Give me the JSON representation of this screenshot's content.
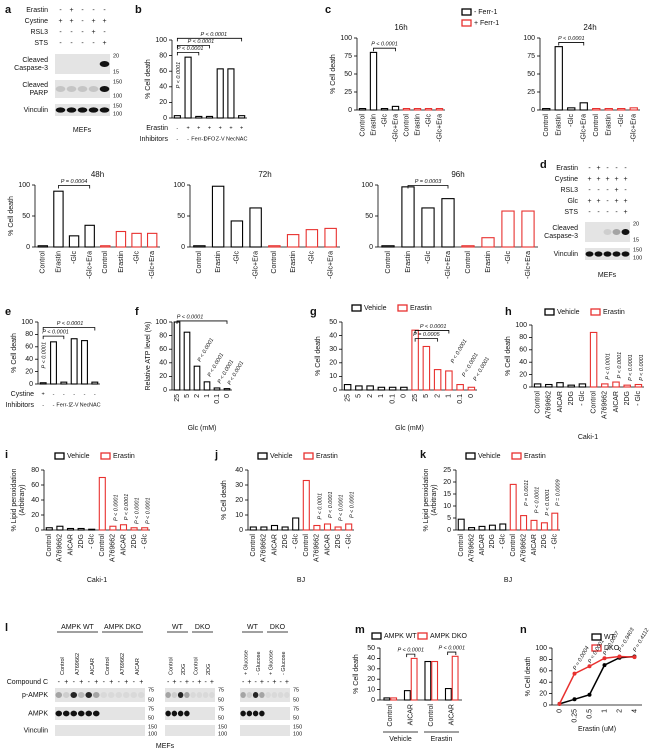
{
  "chart_data": [
    {
      "letter": "b",
      "type": "bar",
      "ylabel": "% Cell death",
      "ylim": [
        0,
        100
      ],
      "yticks": [
        0,
        20,
        40,
        60,
        80,
        100
      ],
      "series": [
        {
          "color": "#000000",
          "values": [
            3,
            78,
            2,
            2,
            63,
            63,
            3
          ]
        }
      ],
      "rows": [
        {
          "label": "Erastin",
          "cells": [
            "-",
            "+",
            "+",
            "+",
            "+",
            "+",
            "+"
          ]
        },
        {
          "label": "Inhibitors",
          "cells": [
            "-",
            "-",
            "Ferr-1",
            "DFO",
            "Z-V",
            "Nec",
            "NAC"
          ]
        }
      ],
      "annotations": [
        "P < 0.0001",
        "P < 0.0001",
        "P < 0.0001",
        "P < 0.0001"
      ]
    },
    {
      "letter": "c",
      "type": "bar",
      "title": "16h",
      "ylabel": "% Cell death",
      "ylim": [
        0,
        100
      ],
      "yticks": [
        0,
        25,
        50,
        75,
        100
      ],
      "categories": [
        "Control",
        "Erastin",
        "-Glc",
        "-Glc+Era",
        "Control",
        "Erastin",
        "-Glc",
        "-Glc+Era"
      ],
      "series": [
        {
          "name": "- Ferr-1",
          "color": "#000000",
          "values": [
            2,
            80,
            2,
            5,
            null,
            null,
            null,
            null
          ]
        },
        {
          "name": "+ Ferr-1",
          "color": "#e8312f",
          "values": [
            null,
            null,
            null,
            null,
            2,
            2,
            2,
            2
          ]
        }
      ],
      "annotations": [
        "P < 0.0001"
      ]
    },
    {
      "type": "bar",
      "title": "24h",
      "ylim": [
        0,
        100
      ],
      "yticks": [
        0,
        25,
        50,
        75,
        100
      ],
      "categories": [
        "Control",
        "Erastin",
        "-Glc",
        "-Glc+Era",
        "Control",
        "Erastin",
        "-Glc",
        "-Glc+Era"
      ],
      "series": [
        {
          "color": "#000000",
          "values": [
            2,
            88,
            3,
            10,
            null,
            null,
            null,
            null
          ]
        },
        {
          "color": "#e8312f",
          "values": [
            null,
            null,
            null,
            null,
            2,
            2,
            2,
            3
          ]
        }
      ],
      "annotations": [
        "P < 0.0001"
      ]
    },
    {
      "type": "bar",
      "title": "48h",
      "ylabel": "% Cell death",
      "ylim": [
        0,
        100
      ],
      "yticks": [
        0,
        50,
        100
      ],
      "categories": [
        "Control",
        "Erastin",
        "-Glc",
        "-Glc+Era",
        "Control",
        "Erastin",
        "-Glc",
        "-Glc+Era"
      ],
      "series": [
        {
          "color": "#000000",
          "values": [
            2,
            90,
            18,
            35,
            null,
            null,
            null,
            null
          ]
        },
        {
          "color": "#e8312f",
          "values": [
            null,
            null,
            null,
            null,
            2,
            25,
            22,
            22
          ]
        }
      ],
      "annotations": [
        "P = 0.0004"
      ]
    },
    {
      "type": "bar",
      "title": "72h",
      "ylim": [
        0,
        100
      ],
      "yticks": [
        0,
        50,
        100
      ],
      "categories": [
        "Control",
        "Erastin",
        "-Glc",
        "-Glc+Era",
        "Control",
        "Erastin",
        "-Glc",
        "-Glc+Era"
      ],
      "series": [
        {
          "color": "#000000",
          "values": [
            2,
            98,
            42,
            63,
            null,
            null,
            null,
            null
          ]
        },
        {
          "color": "#e8312f",
          "values": [
            null,
            null,
            null,
            null,
            2,
            20,
            28,
            30
          ]
        }
      ]
    },
    {
      "type": "bar",
      "title": "96h",
      "ylim": [
        0,
        100
      ],
      "yticks": [
        0,
        50,
        100
      ],
      "categories": [
        "Control",
        "Erastin",
        "-Glc",
        "-Glc+Era",
        "Control",
        "Erastin",
        "-Glc",
        "-Glc+Era"
      ],
      "series": [
        {
          "color": "#000000",
          "values": [
            2,
            97,
            63,
            78,
            null,
            null,
            null,
            null
          ]
        },
        {
          "color": "#e8312f",
          "values": [
            null,
            null,
            null,
            null,
            2,
            15,
            58,
            58
          ]
        }
      ],
      "annotations": [
        "P = 0.0003"
      ]
    },
    {
      "letter": "e",
      "type": "bar",
      "ylabel": "% Cell death",
      "ylim": [
        0,
        100
      ],
      "yticks": [
        0,
        20,
        40,
        60,
        80,
        100
      ],
      "series": [
        {
          "color": "#000000",
          "values": [
            2,
            68,
            3,
            73,
            70,
            3
          ]
        }
      ],
      "rows": [
        {
          "label": "Cystine",
          "cells": [
            "+",
            "-",
            "-",
            "-",
            "-",
            "-"
          ]
        },
        {
          "label": "Inhibitors",
          "cells": [
            "-",
            "-",
            "Ferr-1",
            "Z-V",
            "Nec",
            "NAC"
          ]
        }
      ],
      "annotations": [
        "P < 0.0001",
        "P < 0.0001",
        "P < 0.0001"
      ]
    },
    {
      "letter": "f",
      "type": "bar",
      "ylabel": "Relative ATP level (%)",
      "xlabel": "Glc (mM)",
      "ylim": [
        0,
        100
      ],
      "yticks": [
        0,
        20,
        40,
        60,
        80,
        100
      ],
      "categories": [
        "25",
        "5",
        "2",
        "1",
        "0.1",
        "0"
      ],
      "series": [
        {
          "color": "#000000",
          "values": [
            100,
            85,
            35,
            12,
            3,
            2
          ]
        }
      ],
      "annotations": [
        "P < 0.0001",
        "P < 0.0001",
        "P < 0.0001",
        "P < 0.0001",
        "P < 0.0001"
      ]
    },
    {
      "letter": "g",
      "type": "bar",
      "ylabel": "% Cell death",
      "xlabel": "Glc (mM)",
      "ylim": [
        0,
        50
      ],
      "yticks": [
        0,
        10,
        20,
        30,
        40,
        50
      ],
      "categories": [
        "25",
        "5",
        "2",
        "1",
        "0.1",
        "0",
        "25",
        "5",
        "2",
        "1",
        "0.1",
        "0"
      ],
      "series": [
        {
          "name": "Vehicle",
          "color": "#000000",
          "values": [
            4,
            3,
            3,
            2,
            2,
            2,
            null,
            null,
            null,
            null,
            null,
            null
          ]
        },
        {
          "name": "Erastin",
          "color": "#e8312f",
          "values": [
            null,
            null,
            null,
            null,
            null,
            null,
            44,
            32,
            15,
            14,
            4,
            2
          ]
        }
      ],
      "annotations": [
        "P = 0.0005",
        "P < 0.0001",
        "P < 0.0001",
        "P < 0.0001",
        "P < 0.0001"
      ]
    },
    {
      "letter": "h",
      "type": "bar",
      "ylabel": "% Cell death",
      "xlabel": "Caki-1",
      "ylim": [
        0,
        100
      ],
      "yticks": [
        0,
        20,
        40,
        60,
        80,
        100
      ],
      "categories": [
        "Control",
        "A769662",
        "AICAR",
        "2DG",
        "- Glc",
        "Control",
        "A769662",
        "AICAR",
        "2DG",
        "- Glc"
      ],
      "series": [
        {
          "name": "Vehicle",
          "color": "#000000",
          "values": [
            5,
            4,
            7,
            3,
            5,
            null,
            null,
            null,
            null,
            null
          ]
        },
        {
          "name": "Erastin",
          "color": "#e8312f",
          "values": [
            null,
            null,
            null,
            null,
            null,
            88,
            5,
            8,
            3,
            4
          ]
        }
      ],
      "annotations": [
        "P < 0.0001",
        "P < 0.0001",
        "P < 0.0001",
        "P < 0.0001"
      ]
    },
    {
      "letter": "i",
      "type": "bar",
      "ylabel": [
        "% Lipid peroxidation",
        "(Arbitrary)"
      ],
      "xlabel": "Caki-1",
      "ylim": [
        0,
        80
      ],
      "yticks": [
        0,
        20,
        40,
        60,
        80
      ],
      "categories": [
        "Control",
        "A769662",
        "AICAR",
        "2DG",
        "- Glc",
        "Control",
        "A769662",
        "AICAR",
        "2DG",
        "- Glc"
      ],
      "series": [
        {
          "name": "Vehicle",
          "color": "#000000",
          "values": [
            3,
            5,
            2,
            2,
            1,
            null,
            null,
            null,
            null,
            null
          ]
        },
        {
          "name": "Erastin",
          "color": "#e8312f",
          "values": [
            null,
            null,
            null,
            null,
            null,
            70,
            5,
            7,
            3,
            3
          ]
        }
      ],
      "annotations": [
        "P < 0.0001",
        "P < 0.0001",
        "P < 0.0001",
        "P < 0.0001"
      ]
    },
    {
      "letter": "j",
      "type": "bar",
      "ylabel": "% Cell death",
      "xlabel": "BJ",
      "ylim": [
        0,
        40
      ],
      "yticks": [
        0,
        10,
        20,
        30,
        40
      ],
      "categories": [
        "Control",
        "A769662",
        "AICAR",
        "2DG",
        "- Glc",
        "Control",
        "A769662",
        "AICAR",
        "2DG",
        "- Glc"
      ],
      "series": [
        {
          "name": "Vehicle",
          "color": "#000000",
          "values": [
            2,
            2,
            3,
            2,
            8,
            null,
            null,
            null,
            null,
            null
          ]
        },
        {
          "name": "Erastin",
          "color": "#e8312f",
          "values": [
            null,
            null,
            null,
            null,
            null,
            33,
            3,
            4,
            2,
            4
          ]
        }
      ],
      "annotations": [
        "P < 0.0001",
        "P < 0.0001",
        "P < 0.0001",
        "P < 0.0001"
      ]
    },
    {
      "letter": "k",
      "type": "bar",
      "ylabel": [
        "% Lipid peroxidation",
        "(Arbitrary)"
      ],
      "xlabel": "BJ",
      "ylim": [
        0,
        25
      ],
      "yticks": [
        0,
        5,
        10,
        15,
        20,
        25
      ],
      "categories": [
        "Control",
        "A769662",
        "AICAR",
        "2DG",
        "- Glc",
        "Control",
        "A769662",
        "AICAR",
        "2DG",
        "- Glc"
      ],
      "series": [
        {
          "name": "Vehicle",
          "color": "#000000",
          "values": [
            4.5,
            1,
            1.5,
            2,
            2.5,
            null,
            null,
            null,
            null,
            null
          ]
        },
        {
          "name": "Erastin",
          "color": "#e8312f",
          "values": [
            null,
            null,
            null,
            null,
            null,
            19,
            6,
            4,
            3,
            7
          ]
        }
      ],
      "annotations": [
        "P = 0.0011",
        "P < 0.0001",
        "P < 0.0001",
        "P = 0.0009"
      ]
    },
    {
      "letter": "m",
      "type": "bar",
      "ylabel": "% Cell death",
      "ylim": [
        0,
        50
      ],
      "yticks": [
        0,
        10,
        20,
        30,
        40,
        50
      ],
      "categories": [
        "Control",
        "AICAR",
        "Control",
        "AICAR"
      ],
      "group_labels": [
        "Vehicle",
        "Erastin"
      ],
      "series": [
        {
          "name": "AMPK WT",
          "color": "#000000",
          "values": [
            2,
            9,
            37,
            11
          ]
        },
        {
          "name": "AMPK DKO",
          "color": "#e8312f",
          "values": [
            2,
            40,
            37,
            42
          ]
        }
      ],
      "annotations": [
        "P < 0.0001",
        "P < 0.0001"
      ]
    },
    {
      "letter": "n",
      "type": "line",
      "ylabel": "% Cell death",
      "xlabel": "Erastin (uM)",
      "ylim": [
        0,
        100
      ],
      "yticks": [
        0,
        20,
        40,
        60,
        80,
        100
      ],
      "categories": [
        "0",
        "0.25",
        "0.5",
        "1",
        "2",
        "4"
      ],
      "series": [
        {
          "name": "WT",
          "color": "#000000",
          "values": [
            2,
            10,
            18,
            70,
            83,
            85
          ]
        },
        {
          "name": "DKO",
          "color": "#e8312f",
          "values": [
            2,
            55,
            68,
            82,
            85,
            84
          ]
        }
      ],
      "annotations": [
        "P = 0.0004",
        "P < 0.0001",
        "P = 0.0007",
        "P = 0.9403",
        "P = 0.4112"
      ]
    }
  ],
  "blots": [
    {
      "letter": "a",
      "rows": [
        {
          "label": "Erastin",
          "cells": [
            "-",
            "+",
            "-",
            "-",
            "-"
          ]
        },
        {
          "label": "Cystine",
          "cells": [
            "+",
            "+",
            "-",
            "+",
            "+"
          ]
        },
        {
          "label": "RSL3",
          "cells": [
            "-",
            "-",
            "-",
            "+",
            "-"
          ]
        },
        {
          "label": "STS",
          "cells": [
            "-",
            "-",
            "-",
            "-",
            "+"
          ]
        }
      ],
      "bands": [
        [
          "Cleaved",
          "Caspase-3"
        ],
        [
          "Cleaved",
          "PARP"
        ],
        [
          "Vinculin"
        ]
      ],
      "markers": [
        20,
        15,
        150,
        100,
        150,
        100
      ],
      "caption": "MEFs"
    },
    {
      "letter": "d",
      "rows": [
        {
          "label": "Erastin",
          "cells": [
            "-",
            "+",
            "-",
            "-",
            "-"
          ]
        },
        {
          "label": "Cystine",
          "cells": [
            "+",
            "+",
            "+",
            "+",
            "+"
          ]
        },
        {
          "label": "RSL3",
          "cells": [
            "-",
            "-",
            "-",
            "+",
            "-"
          ]
        },
        {
          "label": "Glc",
          "cells": [
            "+",
            "+",
            "-",
            "+",
            "+"
          ]
        },
        {
          "label": "STS",
          "cells": [
            "-",
            "-",
            "-",
            "-",
            "+"
          ]
        }
      ],
      "bands": [
        [
          "Cleaved",
          "Caspase-3"
        ],
        [
          "Vinculin"
        ]
      ],
      "markers": [
        20,
        15,
        150,
        100
      ],
      "caption": "MEFs"
    },
    {
      "letter": "l",
      "groups": [
        {
          "genotypes": [
            "AMPK WT",
            "AMPK DKO"
          ],
          "lanes": [
            "Control",
            "A769662",
            "AICAR",
            "Control",
            "A769662",
            "AICAR"
          ],
          "markers": [
            75,
            50,
            75,
            50,
            150,
            100
          ]
        },
        {
          "genotypes": [
            "WT",
            "DKO"
          ],
          "lanes": [
            "Control",
            "2DG",
            "Control",
            "2DG"
          ],
          "markers": [
            75,
            50,
            75,
            50,
            150,
            100
          ]
        },
        {
          "genotypes": [
            "WT",
            "DKO"
          ],
          "lanes": [
            "+ Glucose",
            "- Glucose",
            "+ Glucose",
            "- Glucose"
          ],
          "markers": [
            75,
            50,
            75,
            50,
            150,
            100
          ]
        }
      ],
      "rows": [
        {
          "label": "Compound C",
          "cells": [
            "-",
            "+",
            "-",
            "+",
            "-",
            "+",
            "-",
            "+",
            "-",
            "+",
            "-",
            "+",
            "-",
            "+",
            "-",
            "+",
            "-",
            "+",
            "-",
            "+",
            "-",
            "+",
            "-",
            "+",
            "-",
            "+",
            "-",
            "+"
          ]
        }
      ],
      "bands": [
        [
          "p-AMPK"
        ],
        [
          "AMPK"
        ],
        [
          "Vinculin"
        ]
      ],
      "caption": "MEFs"
    }
  ]
}
